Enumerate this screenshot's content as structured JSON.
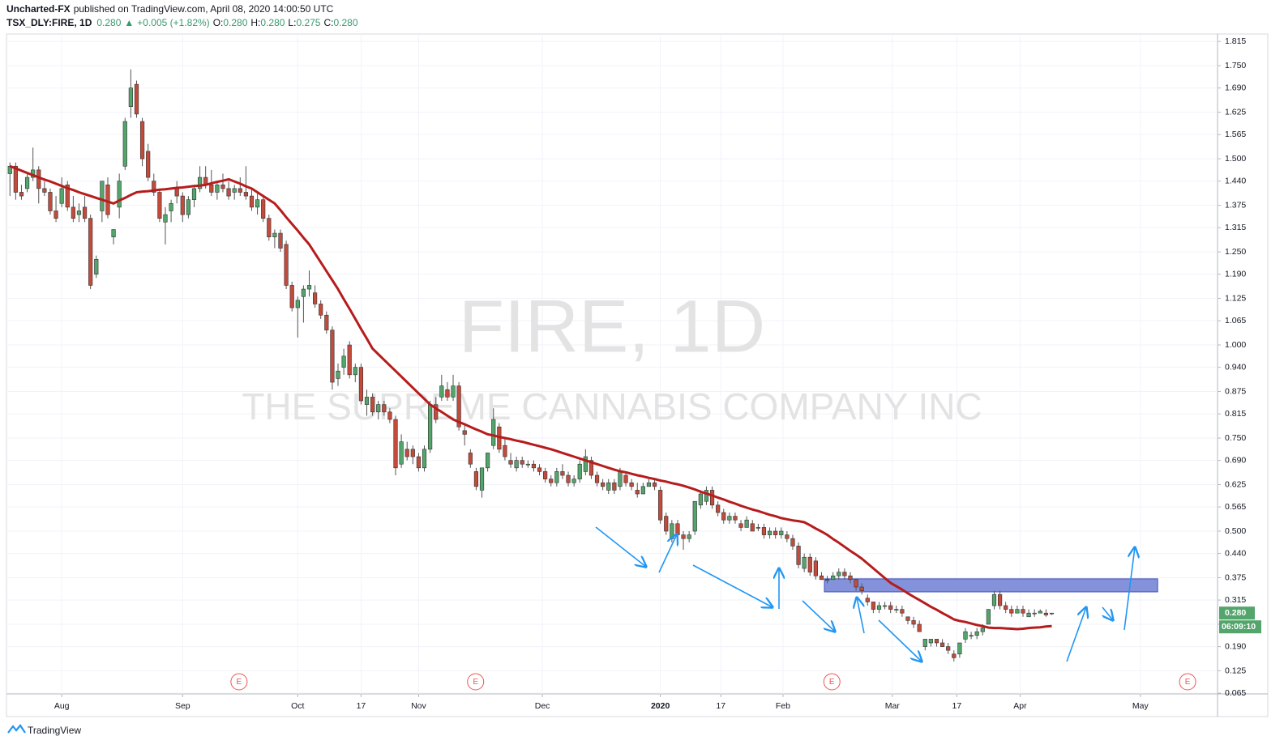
{
  "header": {
    "author": "Uncharted-FX",
    "published": "published on TradingView.com, April 08, 2020 14:00:50 UTC",
    "symbol": "TSX_DLY:FIRE, 1D",
    "last": "0.280",
    "arrow": "▲",
    "change": "+0.005 (+1.82%)",
    "ohlc": [
      {
        "k": "O:",
        "v": "0.280"
      },
      {
        "k": "H:",
        "v": "0.280"
      },
      {
        "k": "L:",
        "v": "0.275"
      },
      {
        "k": "C:",
        "v": "0.280"
      }
    ]
  },
  "footer": {
    "brand": "TradingView"
  },
  "chart_data": {
    "type": "candlestick",
    "watermark": "FIRE, 1D",
    "subtitle": "THE SUPREME CANNABIS COMPANY INC",
    "up_color": "#53a56c",
    "down_color": "#c24b3c",
    "ma_color": "#b71c1c",
    "zone_color": "#6f7fd6",
    "arrow_color": "#2196f3",
    "grid": true,
    "xlim": [
      -0.6,
      209.8
    ],
    "ylim": [
      0.063,
      1.835
    ],
    "xticks": [
      {
        "value": 9,
        "label": "Aug"
      },
      {
        "value": 30,
        "label": "Sep"
      },
      {
        "value": 50,
        "label": "Oct"
      },
      {
        "value": 61,
        "label": "17"
      },
      {
        "value": 71,
        "label": "Nov"
      },
      {
        "value": 92.5,
        "label": "Dec"
      },
      {
        "value": 113,
        "label": "2020",
        "bold": true
      },
      {
        "value": 123.5,
        "label": "17"
      },
      {
        "value": 134.3,
        "label": "Feb"
      },
      {
        "value": 153.3,
        "label": "Mar"
      },
      {
        "value": 164.5,
        "label": "17"
      },
      {
        "value": 175.5,
        "label": "Apr"
      },
      {
        "value": 196.4,
        "label": "May"
      }
    ],
    "yticks": [
      1.815,
      {
        "value": 1.75,
        "label": "1.750"
      },
      {
        "value": 1.69,
        "label": "1.690"
      },
      1.625,
      1.565,
      {
        "value": 1.5,
        "label": "1.500"
      },
      {
        "value": 1.44,
        "label": "1.440"
      },
      1.375,
      1.315,
      {
        "value": 1.25,
        "label": "1.250"
      },
      {
        "value": 1.19,
        "label": "1.190"
      },
      1.125,
      1.065,
      {
        "value": 1,
        "label": "1.000"
      },
      {
        "value": 0.94,
        "label": "0.940"
      },
      0.875,
      0.815,
      {
        "value": 0.75,
        "label": "0.750"
      },
      {
        "value": 0.69,
        "label": "0.690"
      },
      0.625,
      0.565,
      {
        "value": 0.5,
        "label": "0.500"
      },
      {
        "value": 0.44,
        "label": "0.440"
      },
      0.375,
      0.315,
      {
        "value": 0.25,
        "label": "0.250"
      },
      {
        "value": 0.19,
        "label": "0.190"
      },
      0.125,
      0.065
    ],
    "ohlc": [
      [
        1.46,
        1.49,
        1.4,
        1.48
      ],
      [
        1.48,
        1.49,
        1.39,
        1.41
      ],
      [
        1.41,
        1.43,
        1.39,
        1.4
      ],
      [
        1.42,
        1.46,
        1.41,
        1.45
      ],
      [
        1.45,
        1.53,
        1.44,
        1.47
      ],
      [
        1.47,
        1.48,
        1.38,
        1.42
      ],
      [
        1.42,
        1.44,
        1.4,
        1.41
      ],
      [
        1.41,
        1.42,
        1.35,
        1.36
      ],
      [
        1.36,
        1.4,
        1.33,
        1.34
      ],
      [
        1.38,
        1.45,
        1.37,
        1.42
      ],
      [
        1.43,
        1.44,
        1.36,
        1.37
      ],
      [
        1.37,
        1.4,
        1.33,
        1.34
      ],
      [
        1.35,
        1.38,
        1.33,
        1.36
      ],
      [
        1.37,
        1.4,
        1.33,
        1.34
      ],
      [
        1.34,
        1.35,
        1.15,
        1.16
      ],
      [
        1.19,
        1.24,
        1.18,
        1.23
      ],
      [
        1.36,
        1.44,
        1.33,
        1.44
      ],
      [
        1.43,
        1.45,
        1.34,
        1.35
      ],
      [
        1.29,
        1.31,
        1.27,
        1.31
      ],
      [
        1.37,
        1.46,
        1.34,
        1.44
      ],
      [
        1.48,
        1.61,
        1.47,
        1.6
      ],
      [
        1.64,
        1.74,
        1.61,
        1.69
      ],
      [
        1.7,
        1.71,
        1.61,
        1.62
      ],
      [
        1.6,
        1.61,
        1.48,
        1.5
      ],
      [
        1.52,
        1.54,
        1.44,
        1.45
      ],
      [
        1.44,
        1.46,
        1.4,
        1.41
      ],
      [
        1.41,
        1.42,
        1.33,
        1.34
      ],
      [
        1.33,
        1.37,
        1.27,
        1.35
      ],
      [
        1.36,
        1.39,
        1.33,
        1.38
      ],
      [
        1.42,
        1.44,
        1.38,
        1.4
      ],
      [
        1.4,
        1.41,
        1.33,
        1.35
      ],
      [
        1.35,
        1.4,
        1.34,
        1.39
      ],
      [
        1.39,
        1.43,
        1.37,
        1.42
      ],
      [
        1.42,
        1.48,
        1.41,
        1.45
      ],
      [
        1.45,
        1.48,
        1.42,
        1.43
      ],
      [
        1.43,
        1.47,
        1.4,
        1.41
      ],
      [
        1.41,
        1.44,
        1.39,
        1.43
      ],
      [
        1.43,
        1.46,
        1.41,
        1.42
      ],
      [
        1.42,
        1.44,
        1.39,
        1.4
      ],
      [
        1.41,
        1.43,
        1.39,
        1.42
      ],
      [
        1.42,
        1.45,
        1.4,
        1.41
      ],
      [
        1.41,
        1.48,
        1.39,
        1.4
      ],
      [
        1.4,
        1.42,
        1.36,
        1.37
      ],
      [
        1.37,
        1.41,
        1.35,
        1.39
      ],
      [
        1.39,
        1.4,
        1.33,
        1.34
      ],
      [
        1.34,
        1.35,
        1.28,
        1.29
      ],
      [
        1.29,
        1.31,
        1.26,
        1.3
      ],
      [
        1.3,
        1.31,
        1.25,
        1.26
      ],
      [
        1.27,
        1.28,
        1.15,
        1.16
      ],
      [
        1.16,
        1.17,
        1.09,
        1.1
      ],
      [
        1.1,
        1.13,
        1.02,
        1.12
      ],
      [
        1.13,
        1.16,
        1.06,
        1.15
      ],
      [
        1.15,
        1.2,
        1.13,
        1.16
      ],
      [
        1.14,
        1.16,
        1.1,
        1.11
      ],
      [
        1.11,
        1.12,
        1.07,
        1.08
      ],
      [
        1.08,
        1.09,
        1.03,
        1.04
      ],
      [
        1.04,
        1.05,
        0.88,
        0.9
      ],
      [
        0.91,
        0.95,
        0.89,
        0.93
      ],
      [
        0.94,
        0.99,
        0.92,
        0.97
      ],
      [
        1.0,
        1.01,
        0.91,
        0.92
      ],
      [
        0.92,
        0.95,
        0.9,
        0.94
      ],
      [
        0.94,
        0.95,
        0.84,
        0.85
      ],
      [
        0.84,
        0.88,
        0.81,
        0.86
      ],
      [
        0.86,
        0.87,
        0.81,
        0.82
      ],
      [
        0.82,
        0.85,
        0.8,
        0.84
      ],
      [
        0.84,
        0.85,
        0.81,
        0.82
      ],
      [
        0.82,
        0.83,
        0.79,
        0.8
      ],
      [
        0.8,
        0.81,
        0.65,
        0.67
      ],
      [
        0.68,
        0.76,
        0.67,
        0.74
      ],
      [
        0.72,
        0.74,
        0.69,
        0.7
      ],
      [
        0.72,
        0.73,
        0.68,
        0.7
      ],
      [
        0.7,
        0.71,
        0.66,
        0.67
      ],
      [
        0.67,
        0.73,
        0.66,
        0.72
      ],
      [
        0.72,
        0.85,
        0.71,
        0.84
      ],
      [
        0.84,
        0.86,
        0.79,
        0.8
      ],
      [
        0.86,
        0.92,
        0.85,
        0.89
      ],
      [
        0.88,
        0.9,
        0.85,
        0.86
      ],
      [
        0.86,
        0.92,
        0.85,
        0.89
      ],
      [
        0.89,
        0.9,
        0.77,
        0.78
      ],
      [
        0.77,
        0.79,
        0.73,
        0.76
      ],
      [
        0.71,
        0.72,
        0.67,
        0.68
      ],
      [
        0.66,
        0.67,
        0.61,
        0.62
      ],
      [
        0.61,
        0.67,
        0.59,
        0.67
      ],
      [
        0.67,
        0.71,
        0.66,
        0.71
      ],
      [
        0.73,
        0.83,
        0.72,
        0.8
      ],
      [
        0.78,
        0.79,
        0.71,
        0.72
      ],
      [
        0.73,
        0.75,
        0.69,
        0.7
      ],
      [
        0.69,
        0.71,
        0.67,
        0.68
      ],
      [
        0.67,
        0.7,
        0.66,
        0.69
      ],
      [
        0.69,
        0.7,
        0.67,
        0.68
      ],
      [
        0.68,
        0.69,
        0.67,
        0.68
      ],
      [
        0.68,
        0.69,
        0.66,
        0.67
      ],
      [
        0.67,
        0.68,
        0.65,
        0.66
      ],
      [
        0.66,
        0.67,
        0.63,
        0.64
      ],
      [
        0.64,
        0.65,
        0.62,
        0.63
      ],
      [
        0.63,
        0.67,
        0.62,
        0.66
      ],
      [
        0.66,
        0.68,
        0.64,
        0.65
      ],
      [
        0.65,
        0.66,
        0.62,
        0.63
      ],
      [
        0.63,
        0.65,
        0.62,
        0.64
      ],
      [
        0.64,
        0.69,
        0.63,
        0.68
      ],
      [
        0.66,
        0.72,
        0.65,
        0.7
      ],
      [
        0.69,
        0.7,
        0.64,
        0.65
      ],
      [
        0.65,
        0.66,
        0.62,
        0.63
      ],
      [
        0.63,
        0.64,
        0.61,
        0.62
      ],
      [
        0.61,
        0.64,
        0.6,
        0.63
      ],
      [
        0.63,
        0.64,
        0.6,
        0.61
      ],
      [
        0.62,
        0.67,
        0.61,
        0.66
      ],
      [
        0.65,
        0.66,
        0.62,
        0.63
      ],
      [
        0.63,
        0.64,
        0.61,
        0.62
      ],
      [
        0.61,
        0.63,
        0.59,
        0.6
      ],
      [
        0.6,
        0.63,
        0.6,
        0.62
      ],
      [
        0.62,
        0.64,
        0.62,
        0.63
      ],
      [
        0.63,
        0.64,
        0.61,
        0.62
      ],
      [
        0.61,
        0.62,
        0.52,
        0.53
      ],
      [
        0.54,
        0.55,
        0.49,
        0.5
      ],
      [
        0.48,
        0.53,
        0.47,
        0.52
      ],
      [
        0.52,
        0.53,
        0.48,
        0.49
      ],
      [
        0.49,
        0.5,
        0.45,
        0.48
      ],
      [
        0.48,
        0.5,
        0.47,
        0.49
      ],
      [
        0.5,
        0.58,
        0.49,
        0.58
      ],
      [
        0.57,
        0.61,
        0.56,
        0.6
      ],
      [
        0.58,
        0.62,
        0.57,
        0.61
      ],
      [
        0.61,
        0.62,
        0.56,
        0.57
      ],
      [
        0.57,
        0.58,
        0.54,
        0.55
      ],
      [
        0.55,
        0.56,
        0.52,
        0.53
      ],
      [
        0.53,
        0.55,
        0.52,
        0.54
      ],
      [
        0.54,
        0.55,
        0.52,
        0.53
      ],
      [
        0.52,
        0.53,
        0.5,
        0.51
      ],
      [
        0.51,
        0.54,
        0.51,
        0.53
      ],
      [
        0.52,
        0.53,
        0.5,
        0.5
      ],
      [
        0.51,
        0.52,
        0.5,
        0.51
      ],
      [
        0.51,
        0.52,
        0.48,
        0.49
      ],
      [
        0.49,
        0.51,
        0.48,
        0.5
      ],
      [
        0.5,
        0.51,
        0.48,
        0.49
      ],
      [
        0.49,
        0.51,
        0.48,
        0.5
      ],
      [
        0.49,
        0.5,
        0.47,
        0.48
      ],
      [
        0.48,
        0.49,
        0.45,
        0.46
      ],
      [
        0.46,
        0.47,
        0.4,
        0.41
      ],
      [
        0.4,
        0.44,
        0.39,
        0.43
      ],
      [
        0.43,
        0.44,
        0.38,
        0.39
      ],
      [
        0.42,
        0.43,
        0.37,
        0.38
      ],
      [
        0.38,
        0.39,
        0.37,
        0.37
      ],
      [
        0.37,
        0.38,
        0.36,
        0.37
      ],
      [
        0.37,
        0.39,
        0.37,
        0.38
      ],
      [
        0.38,
        0.4,
        0.37,
        0.39
      ],
      [
        0.39,
        0.4,
        0.37,
        0.38
      ],
      [
        0.38,
        0.39,
        0.36,
        0.37
      ],
      [
        0.37,
        0.37,
        0.34,
        0.35
      ],
      [
        0.35,
        0.36,
        0.33,
        0.34
      ],
      [
        0.32,
        0.33,
        0.3,
        0.31
      ],
      [
        0.31,
        0.31,
        0.28,
        0.29
      ],
      [
        0.29,
        0.31,
        0.28,
        0.3
      ],
      [
        0.3,
        0.31,
        0.29,
        0.3
      ],
      [
        0.3,
        0.31,
        0.28,
        0.29
      ],
      [
        0.29,
        0.3,
        0.28,
        0.29
      ],
      [
        0.29,
        0.3,
        0.27,
        0.28
      ],
      [
        0.27,
        0.27,
        0.25,
        0.26
      ],
      [
        0.26,
        0.27,
        0.24,
        0.25
      ],
      [
        0.25,
        0.26,
        0.23,
        0.23
      ],
      [
        0.19,
        0.21,
        0.18,
        0.21
      ],
      [
        0.2,
        0.21,
        0.19,
        0.21
      ],
      [
        0.21,
        0.21,
        0.19,
        0.2
      ],
      [
        0.2,
        0.21,
        0.19,
        0.19
      ],
      [
        0.19,
        0.2,
        0.17,
        0.18
      ],
      [
        0.17,
        0.18,
        0.15,
        0.16
      ],
      [
        0.17,
        0.2,
        0.16,
        0.2
      ],
      [
        0.21,
        0.24,
        0.2,
        0.23
      ],
      [
        0.22,
        0.23,
        0.21,
        0.22
      ],
      [
        0.22,
        0.24,
        0.21,
        0.23
      ],
      [
        0.23,
        0.25,
        0.22,
        0.24
      ],
      [
        0.25,
        0.29,
        0.25,
        0.29
      ],
      [
        0.3,
        0.34,
        0.29,
        0.33
      ],
      [
        0.33,
        0.34,
        0.29,
        0.3
      ],
      [
        0.3,
        0.31,
        0.28,
        0.29
      ],
      [
        0.29,
        0.3,
        0.27,
        0.28
      ],
      [
        0.28,
        0.3,
        0.28,
        0.29
      ],
      [
        0.29,
        0.3,
        0.27,
        0.28
      ],
      [
        0.27,
        0.29,
        0.27,
        0.28
      ],
      [
        0.28,
        0.29,
        0.27,
        0.28
      ],
      [
        0.28,
        0.29,
        0.28,
        0.285
      ],
      [
        0.28,
        0.29,
        0.27,
        0.275
      ],
      [
        0.28,
        0.28,
        0.275,
        0.28
      ]
    ],
    "ma": [
      1.48,
      1.474,
      1.468,
      1.462,
      1.456,
      1.45,
      1.444,
      1.439,
      1.433,
      1.427,
      1.421,
      1.416,
      1.41,
      1.405,
      1.4,
      1.395,
      1.39,
      1.385,
      1.38,
      1.388,
      1.395,
      1.403,
      1.41,
      1.412,
      1.413,
      1.415,
      1.417,
      1.418,
      1.42,
      1.422,
      1.423,
      1.425,
      1.427,
      1.428,
      1.43,
      1.434,
      1.438,
      1.441,
      1.445,
      1.439,
      1.433,
      1.426,
      1.42,
      1.41,
      1.4,
      1.39,
      1.38,
      1.362,
      1.343,
      1.325,
      1.307,
      1.288,
      1.27,
      1.246,
      1.222,
      1.198,
      1.174,
      1.15,
      1.123,
      1.097,
      1.07,
      1.043,
      1.017,
      0.99,
      0.975,
      0.96,
      0.945,
      0.93,
      0.915,
      0.9,
      0.885,
      0.87,
      0.855,
      0.84,
      0.83,
      0.82,
      0.81,
      0.8,
      0.793,
      0.787,
      0.78,
      0.773,
      0.767,
      0.76,
      0.757,
      0.753,
      0.75,
      0.747,
      0.743,
      0.74,
      0.736,
      0.732,
      0.728,
      0.724,
      0.72,
      0.715,
      0.71,
      0.705,
      0.7,
      0.695,
      0.69,
      0.685,
      0.68,
      0.675,
      0.67,
      0.665,
      0.661,
      0.658,
      0.654,
      0.65,
      0.647,
      0.643,
      0.64,
      0.636,
      0.633,
      0.629,
      0.626,
      0.622,
      0.617,
      0.612,
      0.606,
      0.601,
      0.596,
      0.59,
      0.585,
      0.579,
      0.574,
      0.568,
      0.563,
      0.558,
      0.554,
      0.549,
      0.544,
      0.54,
      0.535,
      0.532,
      0.529,
      0.527,
      0.524,
      0.516,
      0.507,
      0.499,
      0.49,
      0.479,
      0.469,
      0.458,
      0.447,
      0.437,
      0.426,
      0.413,
      0.4,
      0.387,
      0.374,
      0.361,
      0.352,
      0.343,
      0.333,
      0.324,
      0.315,
      0.306,
      0.297,
      0.289,
      0.28,
      0.272,
      0.263,
      0.259,
      0.256,
      0.252,
      0.248,
      0.245,
      0.241,
      0.24,
      0.24,
      0.239,
      0.238,
      0.237,
      0.238,
      0.24,
      0.241,
      0.242,
      0.244,
      0.245
    ],
    "zone": {
      "x": [
        141.5,
        199.4
      ],
      "y": [
        0.337,
        0.372
      ]
    },
    "earnings": {
      "label": "E",
      "x": [
        39.8,
        80.9,
        142.8,
        204.6
      ]
    },
    "last_price_label": "0.280",
    "countdown": "06:09:10"
  }
}
